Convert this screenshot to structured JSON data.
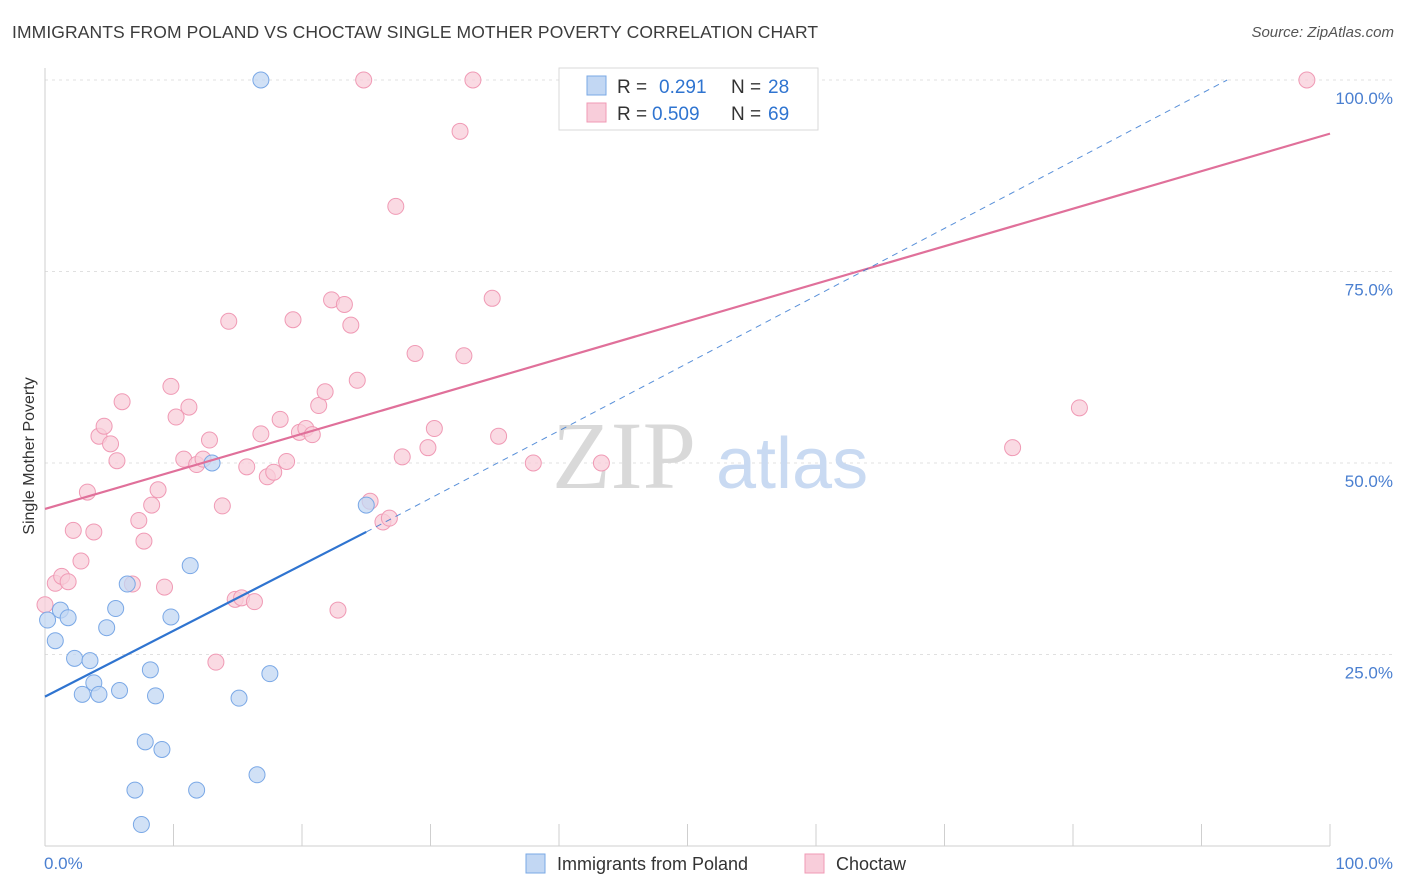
{
  "title": "IMMIGRANTS FROM POLAND VS CHOCTAW SINGLE MOTHER POVERTY CORRELATION CHART",
  "source": "Source: ZipAtlas.com",
  "watermark": {
    "zip": "ZIP",
    "atlas": "atlas"
  },
  "colors": {
    "poland": "#7aa8e6",
    "poland_fill": "#c2d7f3",
    "poland_line": "#2f74d0",
    "choctaw": "#f09ab5",
    "choctaw_fill": "#f8cdda",
    "choctaw_line": "#e0709a",
    "tick": "#4a7fd0",
    "grid": "#e0e0e0"
  },
  "legend": {
    "rows": [
      {
        "r_label": "R = ",
        "r_value": "0.291",
        "n_label": "N = ",
        "n_value": "28"
      },
      {
        "r_label": "R = ",
        "r_value": "0.509",
        "n_label": "N = ",
        "n_value": "69"
      }
    ]
  },
  "chart_data": {
    "type": "scatter",
    "title": "IMMIGRANTS FROM POLAND VS CHOCTAW SINGLE MOTHER POVERTY CORRELATION CHART",
    "xlabel": "",
    "ylabel": "Single Mother Poverty",
    "xlim": [
      0,
      100
    ],
    "ylim": [
      0,
      100
    ],
    "x_tick_labels": [
      "0.0%",
      "100.0%"
    ],
    "y_ticks": [
      25,
      50,
      75,
      100
    ],
    "y_tick_labels": [
      "25.0%",
      "50.0%",
      "75.0%",
      "100.0%"
    ],
    "grid": true,
    "legend_position": "top-center",
    "series": [
      {
        "name": "Immigrants from Poland",
        "r": 0.291,
        "n": 28,
        "trend": {
          "x0": 0,
          "y0": 19.5,
          "x1": 25,
          "y1": 41,
          "dashed_to": {
            "x": 92,
            "y": 100
          }
        },
        "points": [
          [
            0.2,
            29.5
          ],
          [
            0.8,
            26.8
          ],
          [
            1.2,
            30.8
          ],
          [
            1.8,
            29.8
          ],
          [
            2.3,
            24.5
          ],
          [
            2.9,
            19.8
          ],
          [
            3.5,
            24.2
          ],
          [
            3.8,
            21.3
          ],
          [
            4.2,
            19.8
          ],
          [
            4.8,
            28.5
          ],
          [
            5.5,
            31.0
          ],
          [
            5.8,
            20.3
          ],
          [
            6.4,
            34.2
          ],
          [
            7.0,
            7.3
          ],
          [
            7.5,
            2.8
          ],
          [
            7.8,
            13.6
          ],
          [
            8.2,
            23.0
          ],
          [
            8.6,
            19.6
          ],
          [
            9.1,
            12.6
          ],
          [
            9.8,
            29.9
          ],
          [
            11.3,
            36.6
          ],
          [
            11.8,
            7.3
          ],
          [
            13.0,
            50.0
          ],
          [
            15.1,
            19.3
          ],
          [
            16.5,
            9.3
          ],
          [
            16.8,
            100.0
          ],
          [
            17.5,
            22.5
          ],
          [
            25.0,
            44.5
          ]
        ]
      },
      {
        "name": "Choctaw",
        "r": 0.509,
        "n": 69,
        "trend": {
          "x0": 0,
          "y0": 44,
          "x1": 100,
          "y1": 93
        },
        "points": [
          [
            0.0,
            31.5
          ],
          [
            0.8,
            34.3
          ],
          [
            1.3,
            35.2
          ],
          [
            1.8,
            34.5
          ],
          [
            2.2,
            41.2
          ],
          [
            2.8,
            37.2
          ],
          [
            3.3,
            46.2
          ],
          [
            3.8,
            41.0
          ],
          [
            4.2,
            53.5
          ],
          [
            4.6,
            54.8
          ],
          [
            5.1,
            52.5
          ],
          [
            5.6,
            50.3
          ],
          [
            6.0,
            58.0
          ],
          [
            6.8,
            34.2
          ],
          [
            7.3,
            42.5
          ],
          [
            7.7,
            39.8
          ],
          [
            8.3,
            44.5
          ],
          [
            8.8,
            46.5
          ],
          [
            9.3,
            33.8
          ],
          [
            9.8,
            60.0
          ],
          [
            10.2,
            56.0
          ],
          [
            10.8,
            50.5
          ],
          [
            11.2,
            57.3
          ],
          [
            11.8,
            49.8
          ],
          [
            12.3,
            50.5
          ],
          [
            12.8,
            53.0
          ],
          [
            13.3,
            24.0
          ],
          [
            13.8,
            44.4
          ],
          [
            14.3,
            68.5
          ],
          [
            14.8,
            32.2
          ],
          [
            15.3,
            32.4
          ],
          [
            15.7,
            49.5
          ],
          [
            16.3,
            31.9
          ],
          [
            16.8,
            53.8
          ],
          [
            17.3,
            48.2
          ],
          [
            17.8,
            48.8
          ],
          [
            18.3,
            55.7
          ],
          [
            18.8,
            50.2
          ],
          [
            19.3,
            68.7
          ],
          [
            19.8,
            54.0
          ],
          [
            20.3,
            54.5
          ],
          [
            20.8,
            53.7
          ],
          [
            21.3,
            57.5
          ],
          [
            21.8,
            59.3
          ],
          [
            22.3,
            71.3
          ],
          [
            22.8,
            30.8
          ],
          [
            23.3,
            70.7
          ],
          [
            23.8,
            68.0
          ],
          [
            24.3,
            60.8
          ],
          [
            24.8,
            100.0
          ],
          [
            25.3,
            45.0
          ],
          [
            26.3,
            42.3
          ],
          [
            26.8,
            42.8
          ],
          [
            27.3,
            83.5
          ],
          [
            27.8,
            50.8
          ],
          [
            28.8,
            64.3
          ],
          [
            29.8,
            52.0
          ],
          [
            30.3,
            54.5
          ],
          [
            32.3,
            93.3
          ],
          [
            32.6,
            64.0
          ],
          [
            33.3,
            100.0
          ],
          [
            34.8,
            71.5
          ],
          [
            35.3,
            53.5
          ],
          [
            38.0,
            50.0
          ],
          [
            43.3,
            50.0
          ],
          [
            45.3,
            100.0
          ],
          [
            75.3,
            52.0
          ],
          [
            80.5,
            57.2
          ],
          [
            98.2,
            100.0
          ]
        ]
      }
    ]
  },
  "bottom_legend": [
    {
      "label": "Immigrants from Poland"
    },
    {
      "label": "Choctaw"
    }
  ]
}
